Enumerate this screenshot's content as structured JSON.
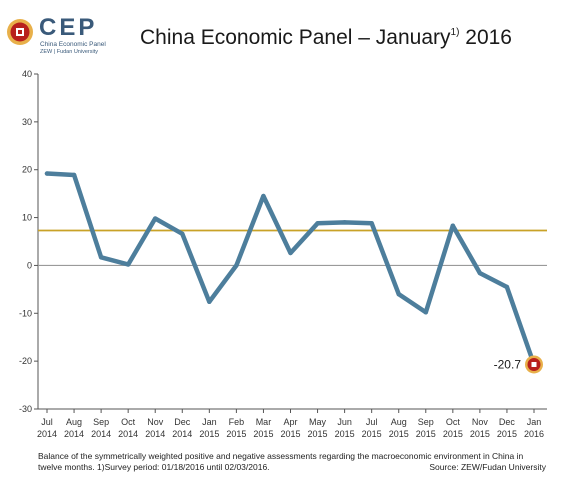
{
  "header": {
    "logo_text": "CEP",
    "logo_sub1": "China Economic Panel",
    "logo_sub2": "ZEW | Fudan University",
    "title": "China Economic Panel – January",
    "title_sup": "1)",
    "title_year": "2016"
  },
  "colors": {
    "line": "#4d7e9c",
    "reference_line": "#c9a227",
    "zero_line": "#9a9a9a",
    "marker_outer": "#e8b04a",
    "marker_inner": "#b8201c"
  },
  "chart_data": {
    "type": "line",
    "categories": [
      [
        "Jul",
        "2014"
      ],
      [
        "Aug",
        "2014"
      ],
      [
        "Sep",
        "2014"
      ],
      [
        "Oct",
        "2014"
      ],
      [
        "Nov",
        "2014"
      ],
      [
        "Dec",
        "2014"
      ],
      [
        "Jan",
        "2015"
      ],
      [
        "Feb",
        "2015"
      ],
      [
        "Mar",
        "2015"
      ],
      [
        "Apr",
        "2015"
      ],
      [
        "May",
        "2015"
      ],
      [
        "Jun",
        "2015"
      ],
      [
        "Jul",
        "2015"
      ],
      [
        "Aug",
        "2015"
      ],
      [
        "Sep",
        "2015"
      ],
      [
        "Oct",
        "2015"
      ],
      [
        "Nov",
        "2015"
      ],
      [
        "Dec",
        "2015"
      ],
      [
        "Jan",
        "2016"
      ]
    ],
    "values": [
      19.2,
      18.9,
      1.7,
      0.2,
      9.8,
      6.6,
      -7.6,
      0.0,
      14.5,
      2.6,
      8.8,
      9.0,
      8.8,
      -6.0,
      -9.8,
      8.3,
      -1.6,
      -4.5,
      -20.7
    ],
    "reference_value": 7.3,
    "ylim": [
      -30,
      40
    ],
    "yticks": [
      -30,
      -20,
      -10,
      0,
      10,
      20,
      30,
      40
    ],
    "last_label": "-20.7",
    "grid": false
  },
  "footer": {
    "footnote": "Balance of the symmetrically weighted positive and negative assessments regarding the macroeconomic environment  in China in twelve months. 1)Survey period: 01/18/2016 until 02/03/2016.",
    "source": "Source: ZEW/Fudan University"
  }
}
